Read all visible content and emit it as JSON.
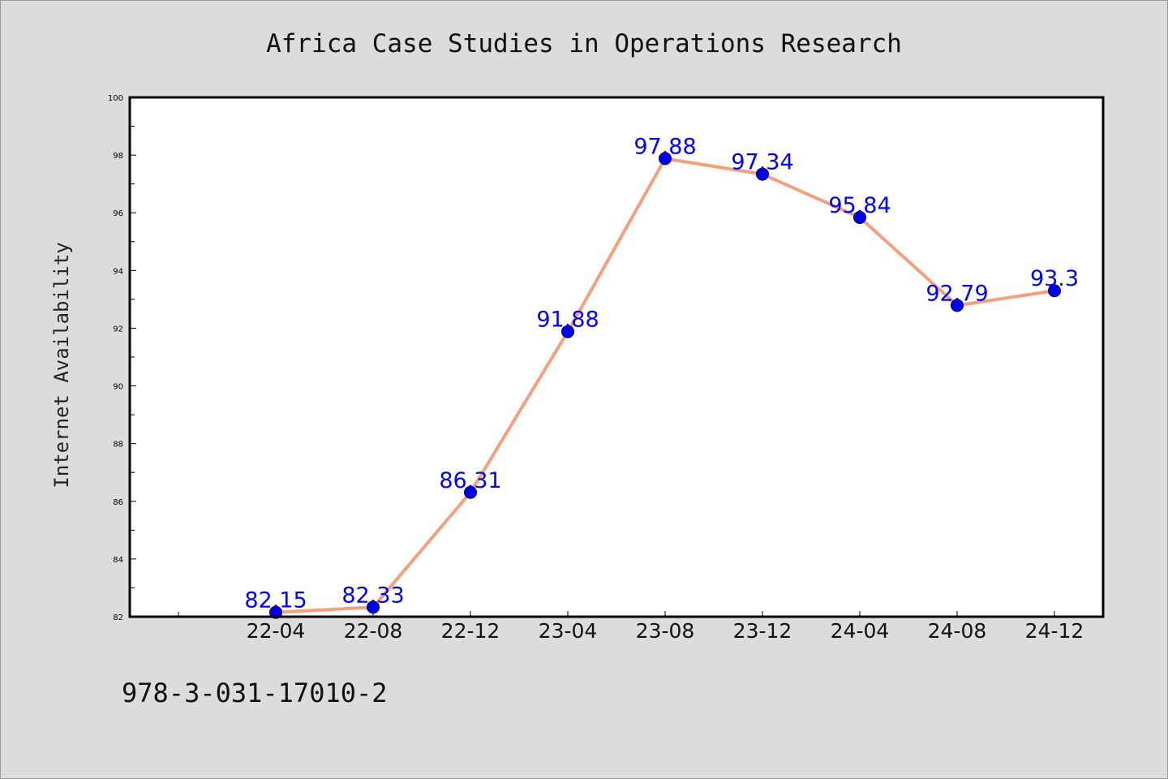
{
  "chart_data": {
    "type": "line",
    "title": "Africa Case Studies in Operations Research",
    "xlabel": "",
    "ylabel": "Internet Availability",
    "categories": [
      "22-04",
      "22-08",
      "22-12",
      "23-04",
      "23-08",
      "23-12",
      "24-04",
      "24-08",
      "24-12"
    ],
    "values": [
      82.15,
      82.33,
      86.31,
      91.88,
      97.88,
      97.34,
      95.84,
      92.79,
      93.3
    ],
    "data_labels": [
      "82.15",
      "82.33",
      "86.31",
      "91.88",
      "97.88",
      "97.34",
      "95.84",
      "92.79",
      "93.3"
    ],
    "ylim": [
      82,
      100
    ],
    "yticks": [
      "82",
      "84",
      "86",
      "88",
      "90",
      "92",
      "94",
      "96",
      "98",
      "100"
    ],
    "grid": false,
    "line_color": "#f4a07f",
    "marker_color": "#0000ee",
    "label_color": "#0000ff",
    "footer": "978-3-031-17010-2"
  }
}
